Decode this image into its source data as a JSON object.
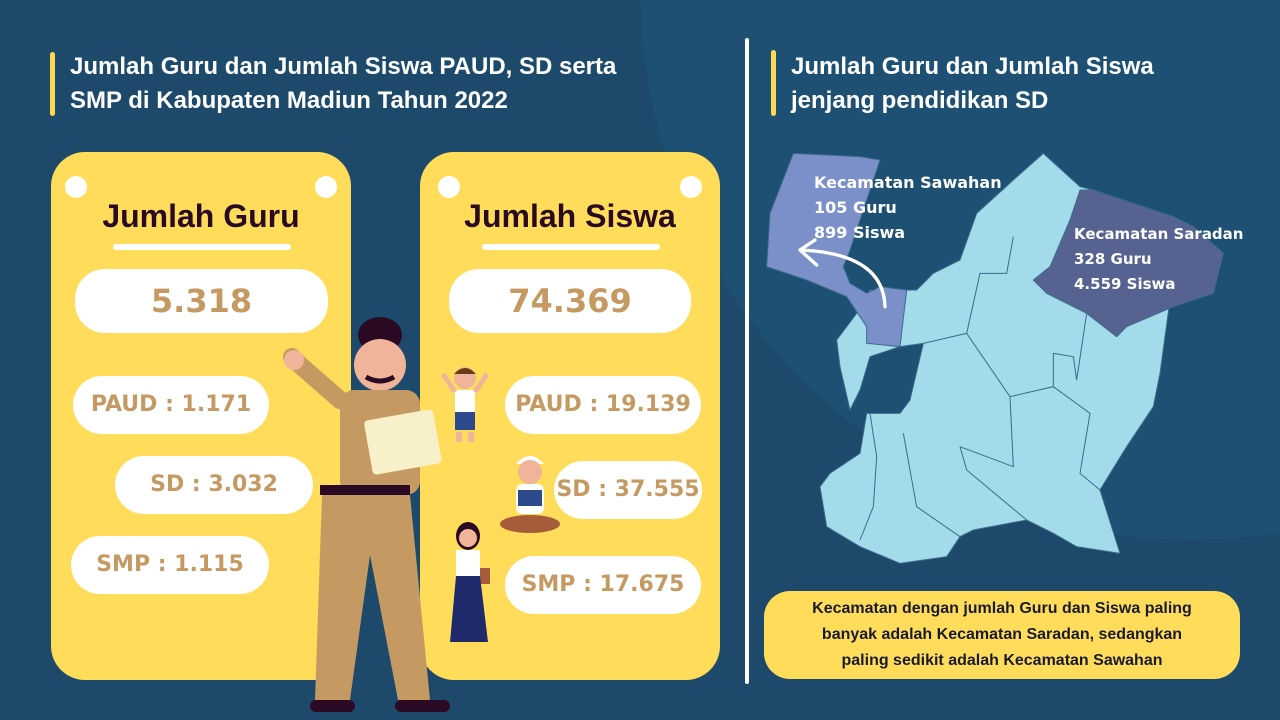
{
  "left_section": {
    "title_line1": "Jumlah Guru dan Jumlah Siswa PAUD, SD serta",
    "title_line2": "SMP di Kabupaten Madiun Tahun 2022"
  },
  "guru_card": {
    "title": "Jumlah Guru",
    "total": "5.318",
    "items": [
      {
        "label": "PAUD : 1.171"
      },
      {
        "label": "SD : 3.032"
      },
      {
        "label": "SMP : 1.115"
      }
    ]
  },
  "siswa_card": {
    "title": "Jumlah Siswa",
    "total": "74.369",
    "items": [
      {
        "label": "PAUD : 19.139"
      },
      {
        "label": "SD : 37.555"
      },
      {
        "label": "SMP : 17.675"
      }
    ]
  },
  "right_section": {
    "title_line1": "Jumlah Guru dan Jumlah Siswa",
    "title_line2": "jenjang pendidikan SD",
    "sawahan": {
      "name": "Kecamatan Sawahan",
      "guru": "105 Guru",
      "siswa": "899 Siswa"
    },
    "saradan": {
      "name": "Kecamatan Saradan",
      "guru": "328 Guru",
      "siswa": "4.559 Siswa"
    },
    "note_line1": "Kecamatan dengan jumlah Guru dan Siswa paling",
    "note_line2": "banyak adalah Kecamatan Saradan, sedangkan",
    "note_line3": "paling sedikit adalah Kecamatan Sawahan"
  },
  "colors": {
    "background": "#1d4a6b",
    "card": "#ffdd5a",
    "value_text": "#c49a62",
    "map_base": "#a3dbea",
    "map_sawahan": "#7b8fc9",
    "map_saradan": "#566391"
  }
}
